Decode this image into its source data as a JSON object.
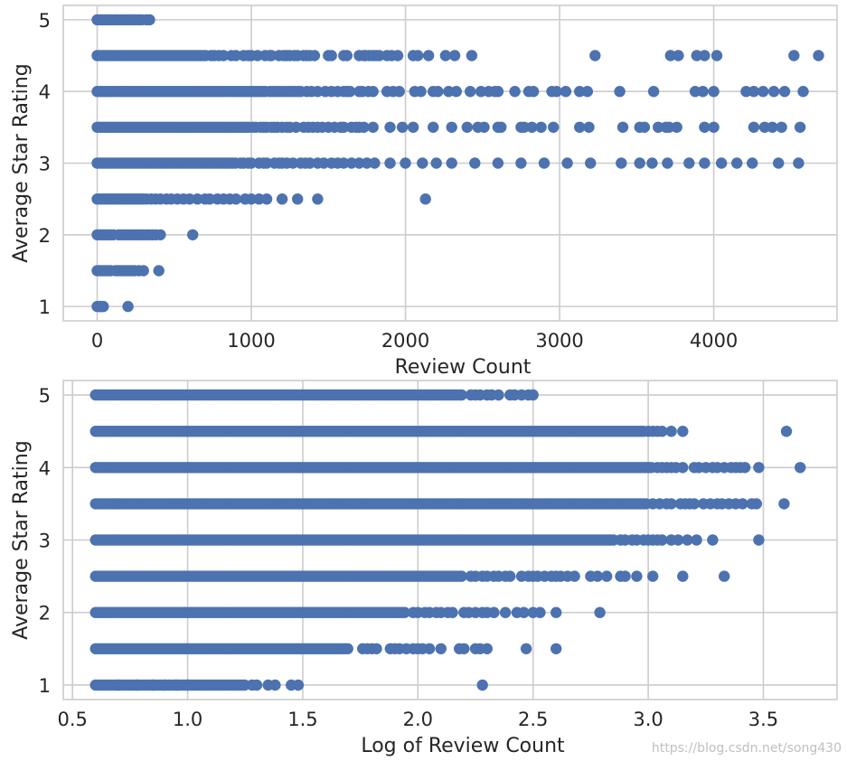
{
  "chart_data": [
    {
      "type": "scatter",
      "xlabel": "Review Count",
      "ylabel": "Average Star Rating",
      "xlim": [
        -220,
        4800
      ],
      "ylim": [
        0.8,
        5.2
      ],
      "xticks": [
        0,
        1000,
        2000,
        3000,
        4000
      ],
      "xtick_labels": [
        "0",
        "1000",
        "2000",
        "3000",
        "4000"
      ],
      "yticks": [
        1,
        2,
        3,
        4,
        5
      ],
      "ytick_labels": [
        "1",
        "2",
        "3",
        "4",
        "5"
      ],
      "grid": true,
      "color": "#4c72b0",
      "rows": [
        {
          "y": 5,
          "dense_to": 100,
          "x": [
            110,
            130,
            150,
            170,
            190,
            210,
            230,
            250,
            270,
            290,
            320,
            340
          ]
        },
        {
          "y": 4.5,
          "dense_to": 720,
          "x": [
            740,
            760,
            790,
            820,
            870,
            900,
            950,
            980,
            1000,
            1040,
            1090,
            1120,
            1130,
            1180,
            1210,
            1230,
            1250,
            1280,
            1300,
            1340,
            1360,
            1380,
            1410,
            1500,
            1520,
            1600,
            1620,
            1700,
            1730,
            1740,
            1765,
            1790,
            1810,
            1830,
            1880,
            1910,
            1950,
            2050,
            2080,
            2150,
            2260,
            2320,
            2430,
            3230,
            3720,
            3770,
            3890,
            3940,
            4020,
            4520,
            4680
          ]
        },
        {
          "y": 4,
          "dense_to": 1100,
          "x": [
            1120,
            1140,
            1160,
            1180,
            1200,
            1220,
            1240,
            1260,
            1280,
            1300,
            1320,
            1360,
            1390,
            1430,
            1480,
            1520,
            1560,
            1600,
            1620,
            1640,
            1700,
            1720,
            1760,
            1790,
            1880,
            1920,
            1960,
            2060,
            2100,
            2180,
            2210,
            2280,
            2330,
            2420,
            2490,
            2540,
            2580,
            2600,
            2710,
            2800,
            2830,
            2950,
            2980,
            3040,
            3130,
            3180,
            3390,
            3610,
            3880,
            3930,
            4000,
            4210,
            4260,
            4320,
            4390,
            4460,
            4580
          ]
        },
        {
          "y": 3.5,
          "dense_to": 1000,
          "x": [
            1010,
            1030,
            1060,
            1080,
            1100,
            1130,
            1150,
            1170,
            1200,
            1230,
            1250,
            1290,
            1340,
            1370,
            1400,
            1430,
            1460,
            1500,
            1540,
            1580,
            1600,
            1650,
            1680,
            1700,
            1730,
            1790,
            1900,
            1980,
            2050,
            2180,
            2300,
            2400,
            2470,
            2510,
            2600,
            2620,
            2750,
            2770,
            2820,
            2880,
            2960,
            3130,
            3190,
            3410,
            3520,
            3550,
            3640,
            3690,
            3710,
            3760,
            3940,
            4000,
            4260,
            4330,
            4380,
            4440,
            4560
          ]
        },
        {
          "y": 3,
          "dense_to": 900,
          "x": [
            930,
            950,
            980,
            1000,
            1050,
            1080,
            1100,
            1150,
            1180,
            1200,
            1230,
            1270,
            1320,
            1350,
            1380,
            1430,
            1470,
            1520,
            1560,
            1600,
            1650,
            1700,
            1750,
            1800,
            1900,
            2000,
            2110,
            2200,
            2300,
            2450,
            2600,
            2750,
            2900,
            3050,
            3200,
            3400,
            3520,
            3600,
            3700,
            3840,
            3940,
            4050,
            4150,
            4250,
            4420,
            4550
          ]
        },
        {
          "y": 2.5,
          "dense_to": 300,
          "x": [
            320,
            350,
            380,
            410,
            450,
            480,
            520,
            560,
            600,
            650,
            700,
            730,
            780,
            820,
            860,
            900,
            960,
            1000,
            1050,
            1100,
            1200,
            1300,
            1430,
            2130
          ]
        },
        {
          "y": 2,
          "dense_to": 120,
          "x": [
            140,
            160,
            180,
            200,
            220,
            240,
            260,
            280,
            300,
            320,
            340,
            360,
            380,
            410,
            620
          ]
        },
        {
          "y": 1.5,
          "dense_to": 100,
          "x": [
            120,
            140,
            160,
            180,
            200,
            220,
            240,
            270,
            300,
            400
          ]
        },
        {
          "y": 1,
          "dense_to": 12,
          "x": [
            15,
            20,
            25,
            30,
            40,
            200
          ]
        }
      ]
    },
    {
      "type": "scatter",
      "xlabel": "Log of Review Count",
      "ylabel": "Average Star Rating",
      "xlim": [
        0.46,
        3.82
      ],
      "ylim": [
        0.8,
        5.2
      ],
      "xticks": [
        0.5,
        1.0,
        1.5,
        2.0,
        2.5,
        3.0,
        3.5
      ],
      "xtick_labels": [
        "0.5",
        "1.0",
        "1.5",
        "2.0",
        "2.5",
        "3.0",
        "3.5"
      ],
      "yticks": [
        1,
        2,
        3,
        4,
        5
      ],
      "ytick_labels": [
        "1",
        "2",
        "3",
        "4",
        "5"
      ],
      "grid": true,
      "color": "#4c72b0",
      "rows": [
        {
          "y": 5,
          "x_start": 0.6,
          "dense_to": 2.2,
          "x": [
            2.23,
            2.25,
            2.27,
            2.3,
            2.32,
            2.35,
            2.4,
            2.42,
            2.45,
            2.48,
            2.5
          ]
        },
        {
          "y": 4.5,
          "x_start": 0.6,
          "dense_to": 2.98,
          "x": [
            3.0,
            3.02,
            3.04,
            3.06,
            3.1,
            3.15,
            3.6
          ]
        },
        {
          "y": 4,
          "x_start": 0.6,
          "dense_to": 3.02,
          "x": [
            3.04,
            3.06,
            3.08,
            3.1,
            3.12,
            3.15,
            3.2,
            3.22,
            3.25,
            3.28,
            3.3,
            3.33,
            3.36,
            3.38,
            3.4,
            3.42,
            3.48,
            3.66
          ]
        },
        {
          "y": 3.5,
          "x_start": 0.6,
          "dense_to": 3.0,
          "x": [
            3.02,
            3.05,
            3.08,
            3.1,
            3.14,
            3.16,
            3.18,
            3.2,
            3.24,
            3.27,
            3.3,
            3.32,
            3.35,
            3.38,
            3.41,
            3.45,
            3.47,
            3.59
          ]
        },
        {
          "y": 3,
          "x_start": 0.6,
          "dense_to": 2.85,
          "x": [
            2.88,
            2.9,
            2.93,
            2.95,
            2.98,
            3.0,
            3.02,
            3.04,
            3.06,
            3.1,
            3.13,
            3.17,
            3.21,
            3.28,
            3.48
          ]
        },
        {
          "y": 2.5,
          "x_start": 0.6,
          "dense_to": 2.2,
          "x": [
            2.23,
            2.25,
            2.28,
            2.3,
            2.33,
            2.35,
            2.38,
            2.4,
            2.45,
            2.48,
            2.5,
            2.52,
            2.55,
            2.58,
            2.6,
            2.62,
            2.65,
            2.68,
            2.75,
            2.78,
            2.82,
            2.88,
            2.9,
            2.95,
            3.02,
            3.15,
            3.33
          ]
        },
        {
          "y": 2,
          "x_start": 0.6,
          "dense_to": 1.95,
          "x": [
            1.98,
            2.0,
            2.03,
            2.05,
            2.08,
            2.1,
            2.13,
            2.15,
            2.2,
            2.22,
            2.25,
            2.28,
            2.3,
            2.33,
            2.38,
            2.43,
            2.46,
            2.5,
            2.53,
            2.6,
            2.79
          ]
        },
        {
          "y": 1.5,
          "x_start": 0.6,
          "dense_to": 1.7,
          "x": [
            1.76,
            1.78,
            1.8,
            1.82,
            1.88,
            1.9,
            1.92,
            1.95,
            1.98,
            2.0,
            2.02,
            2.05,
            2.1,
            2.18,
            2.2,
            2.25,
            2.27,
            2.3,
            2.47,
            2.6
          ]
        },
        {
          "y": 1,
          "x_start": 0.6,
          "dense_to": 1.25,
          "x": [
            0.7,
            0.78,
            0.85,
            0.9,
            0.95,
            1.0,
            1.28,
            1.3,
            1.35,
            1.38,
            1.45,
            1.48,
            2.28
          ]
        }
      ]
    }
  ],
  "watermark": "https://blog.csdn.net/song430"
}
